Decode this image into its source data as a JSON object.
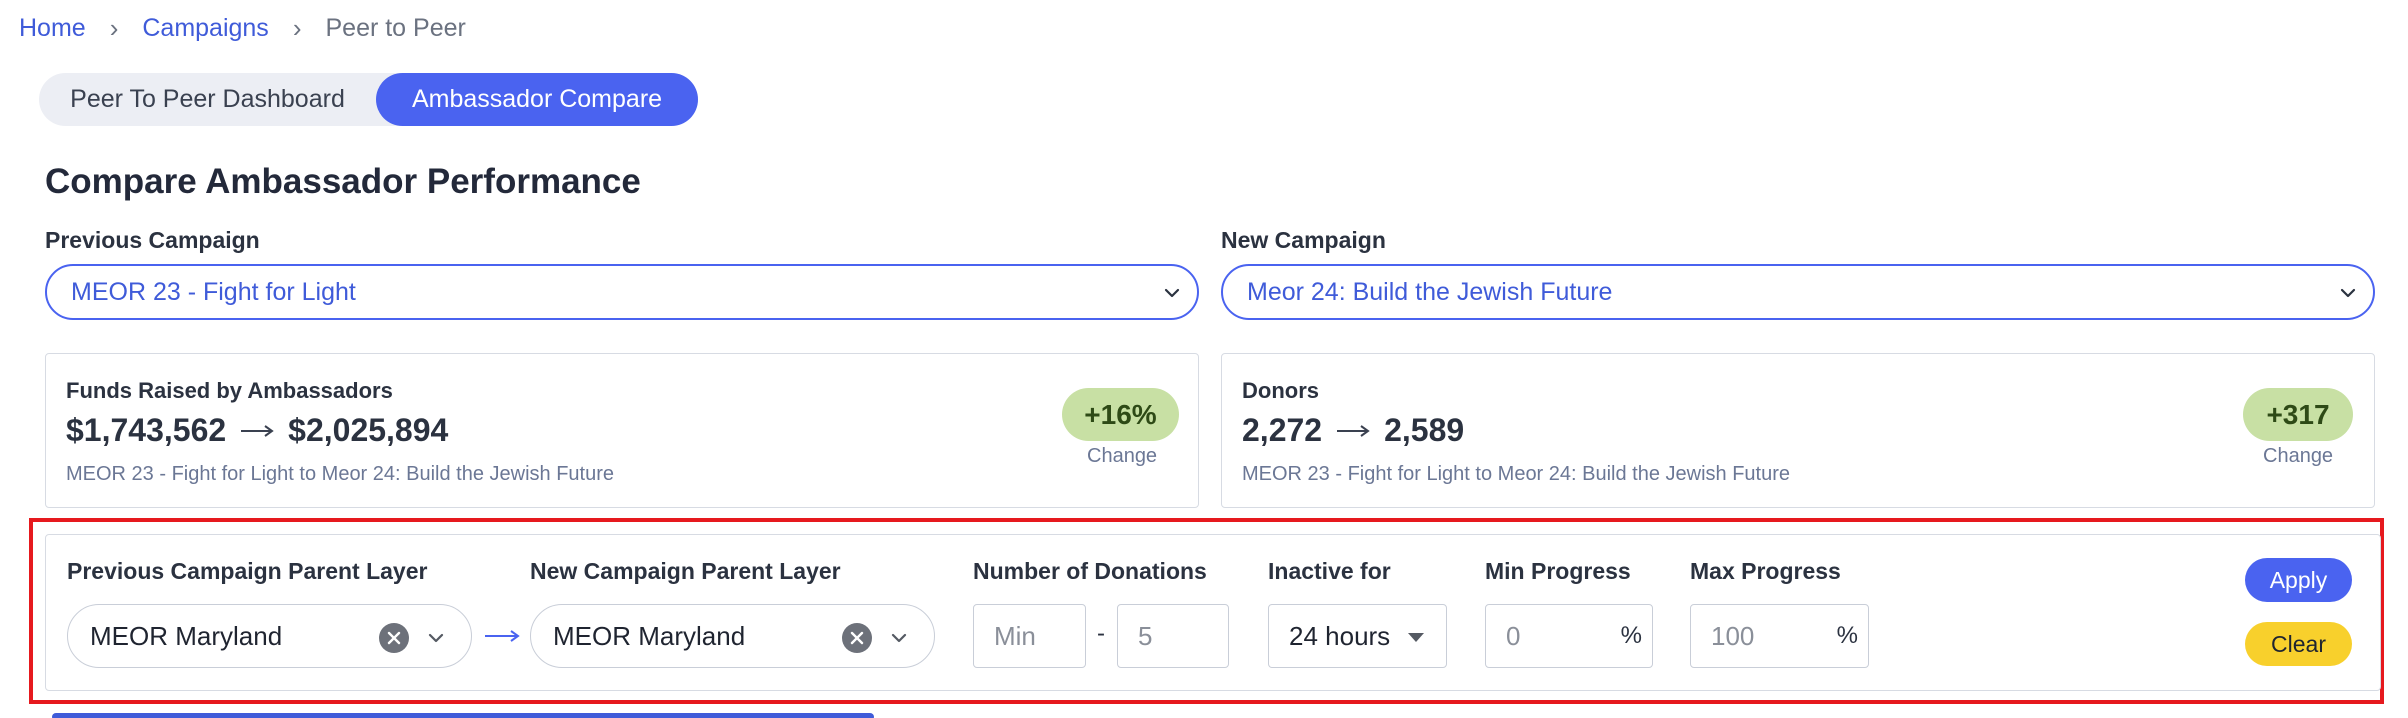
{
  "breadcrumb": {
    "home": "Home",
    "campaigns": "Campaigns",
    "current": "Peer to Peer",
    "separator": "›"
  },
  "tabs": [
    {
      "label": "Peer To Peer Dashboard",
      "active": false
    },
    {
      "label": "Ambassador Compare",
      "active": true
    }
  ],
  "page_title": "Compare Ambassador Performance",
  "previous_campaign": {
    "label": "Previous Campaign",
    "value": "MEOR 23 - Fight for Light"
  },
  "new_campaign": {
    "label": "New Campaign",
    "value": "Meor 24: Build the Jewish Future"
  },
  "cards": {
    "funds": {
      "title": "Funds Raised by Ambassadors",
      "from": "$1,743,562",
      "to": "$2,025,894",
      "subtitle": "MEOR 23 - Fight for Light to Meor 24: Build the Jewish Future",
      "badge": "+16%",
      "badge_label": "Change"
    },
    "donors": {
      "title": "Donors",
      "from": "2,272",
      "to": "2,589",
      "subtitle": "MEOR 23 - Fight for Light to Meor 24: Build the Jewish Future",
      "badge": "+317",
      "badge_label": "Change"
    }
  },
  "filters": {
    "prev_parent_label": "Previous Campaign Parent Layer",
    "prev_parent_value": "MEOR Maryland",
    "new_parent_label": "New Campaign Parent Layer",
    "new_parent_value": "MEOR Maryland",
    "donations_label": "Number of Donations",
    "donations_min_placeholder": "Min",
    "donations_separator": "-",
    "donations_max_placeholder": "5",
    "inactive_label": "Inactive for",
    "inactive_value": "24 hours",
    "min_progress_label": "Min Progress",
    "min_progress_placeholder": "0",
    "max_progress_label": "Max Progress",
    "max_progress_placeholder": "100",
    "percent_symbol": "%",
    "apply_label": "Apply",
    "clear_label": "Clear"
  },
  "colors": {
    "accent": "#4a63f0",
    "badge_bg": "#c8e0a4",
    "highlight": "#e6191e",
    "clear_button": "#f8d02c"
  }
}
